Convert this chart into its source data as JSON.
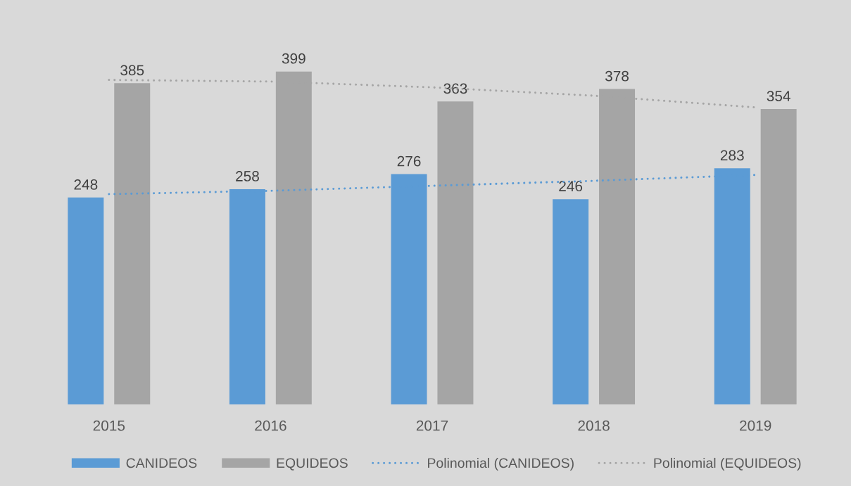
{
  "chart_data": {
    "type": "bar",
    "categories": [
      "2015",
      "2016",
      "2017",
      "2018",
      "2019"
    ],
    "series": [
      {
        "name": "CANIDEOS",
        "color": "#5b9bd5",
        "values": [
          248,
          258,
          276,
          246,
          283
        ],
        "value_labels": [
          "248",
          "258",
          "276",
          "246",
          "283"
        ]
      },
      {
        "name": "EQUIDEOS",
        "color": "#a5a5a5",
        "values": [
          385,
          399,
          363,
          378,
          354
        ],
        "value_labels": [
          "385",
          "399",
          "363",
          "378",
          "354"
        ]
      },
      {
        "name": "Polinomial (CANIDEOS)",
        "type": "line",
        "color": "#5b9bd5",
        "line_style": "dotted",
        "values": [
          252,
          256,
          262,
          268,
          275
        ]
      },
      {
        "name": "Polinomial (EQUIDEOS)",
        "type": "line",
        "color": "#a5a5a5",
        "line_style": "dotted",
        "values": [
          389,
          387,
          380,
          370,
          356
        ]
      }
    ],
    "tick_labels": "x",
    "legend": "bottom"
  }
}
